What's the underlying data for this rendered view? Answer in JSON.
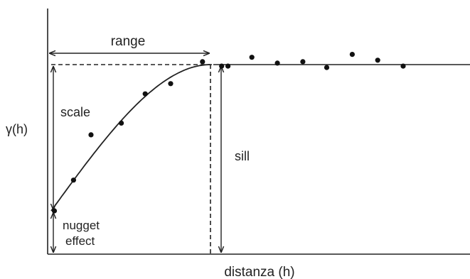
{
  "chart_data": {
    "type": "scatter",
    "title": "",
    "xlabel": "distanza (h)",
    "ylabel": "γ(h)",
    "axes": {
      "x_ticks": false,
      "y_ticks": false,
      "grid": false
    },
    "annotations": {
      "range": "range",
      "scale": "scale",
      "sill": "sill",
      "nugget_line1": "nugget",
      "nugget_line2": "effect"
    },
    "model": {
      "nugget": 0.0,
      "sill": 1.0,
      "range": 1.0,
      "shape": "spherical"
    },
    "series": [
      {
        "values": [
          {
            "x": 0.02,
            "y": 0.0
          },
          {
            "x": 0.14,
            "y": 0.21
          },
          {
            "x": 0.25,
            "y": 0.52
          },
          {
            "x": 0.44,
            "y": 0.6
          },
          {
            "x": 0.59,
            "y": 0.8
          },
          {
            "x": 0.75,
            "y": 0.87
          },
          {
            "x": 0.95,
            "y": 1.02
          },
          {
            "x": 1.07,
            "y": 0.99
          },
          {
            "x": 1.11,
            "y": 0.99
          },
          {
            "x": 1.26,
            "y": 1.05
          },
          {
            "x": 1.42,
            "y": 1.01
          },
          {
            "x": 1.58,
            "y": 1.02
          },
          {
            "x": 1.73,
            "y": 0.98
          },
          {
            "x": 1.89,
            "y": 1.07
          },
          {
            "x": 2.05,
            "y": 1.03
          },
          {
            "x": 2.21,
            "y": 0.99
          }
        ]
      }
    ]
  }
}
